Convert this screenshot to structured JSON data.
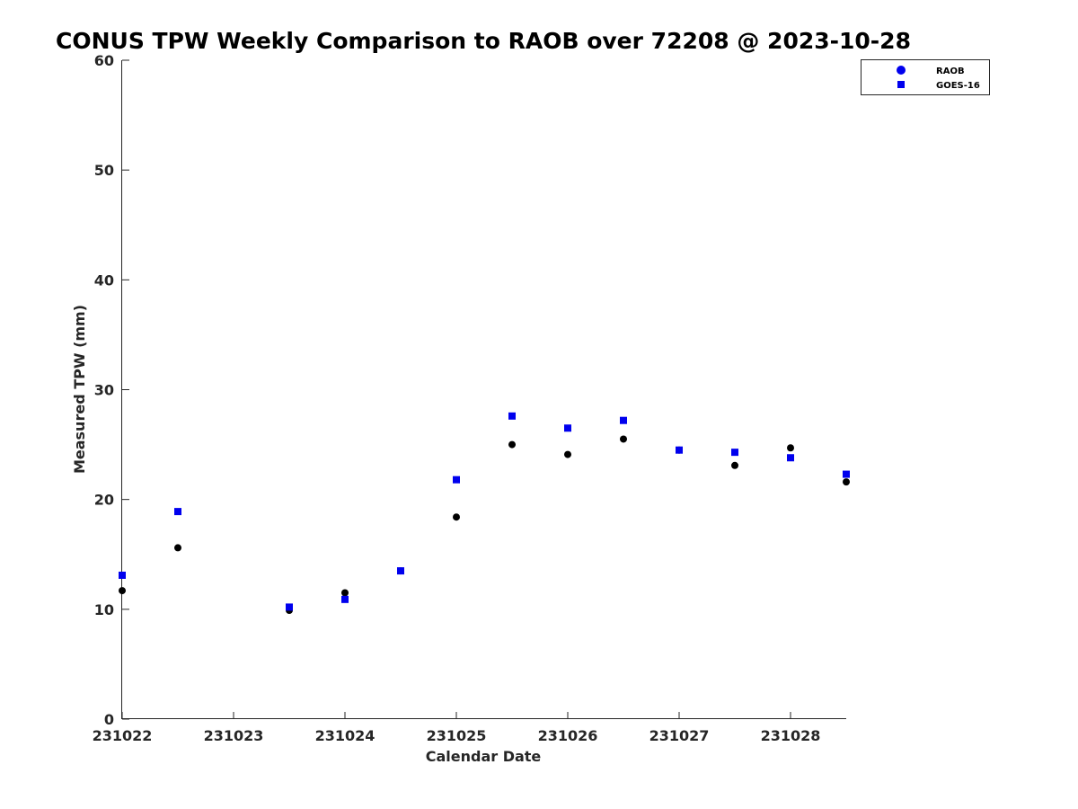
{
  "chart_data": {
    "type": "scatter",
    "title": "CONUS TPW Weekly Comparison to RAOB over 72208 @ 2023-10-28",
    "xlabel": "Calendar Date",
    "ylabel": "Measured TPW (mm)",
    "xlim": [
      231022,
      231028.5
    ],
    "ylim": [
      0,
      60
    ],
    "x_ticks": [
      231022,
      231023,
      231024,
      231025,
      231026,
      231027,
      231028
    ],
    "x_tick_labels": [
      "231022",
      "231023",
      "231024",
      "231025",
      "231026",
      "231027",
      "231028"
    ],
    "y_ticks": [
      0,
      10,
      20,
      30,
      40,
      50,
      60
    ],
    "y_tick_labels": [
      "0",
      "10",
      "20",
      "30",
      "40",
      "50",
      "60"
    ],
    "grid": false,
    "legend_position": "top-right",
    "series": [
      {
        "name": "RAOB",
        "marker": "circle",
        "color": "#000000",
        "legend_color": "#0000ee",
        "points": [
          [
            231022.0,
            11.7
          ],
          [
            231022.5,
            15.6
          ],
          [
            231023.5,
            9.9
          ],
          [
            231024.0,
            11.5
          ],
          [
            231024.5,
            13.5
          ],
          [
            231025.0,
            18.4
          ],
          [
            231025.5,
            25.0
          ],
          [
            231026.0,
            24.1
          ],
          [
            231026.5,
            25.5
          ],
          [
            231027.0,
            24.5
          ],
          [
            231027.5,
            23.1
          ],
          [
            231028.0,
            24.7
          ],
          [
            231028.5,
            21.6
          ]
        ]
      },
      {
        "name": "GOES-16",
        "marker": "square",
        "color": "#0000ee",
        "legend_color": "#0000ee",
        "points": [
          [
            231022.0,
            13.1
          ],
          [
            231022.5,
            18.9
          ],
          [
            231023.5,
            10.2
          ],
          [
            231024.0,
            10.9
          ],
          [
            231024.5,
            13.5
          ],
          [
            231025.0,
            21.8
          ],
          [
            231025.5,
            27.6
          ],
          [
            231026.0,
            26.5
          ],
          [
            231026.5,
            27.2
          ],
          [
            231027.0,
            24.5
          ],
          [
            231027.5,
            24.3
          ],
          [
            231028.0,
            23.8
          ],
          [
            231028.5,
            22.3
          ]
        ]
      }
    ]
  }
}
